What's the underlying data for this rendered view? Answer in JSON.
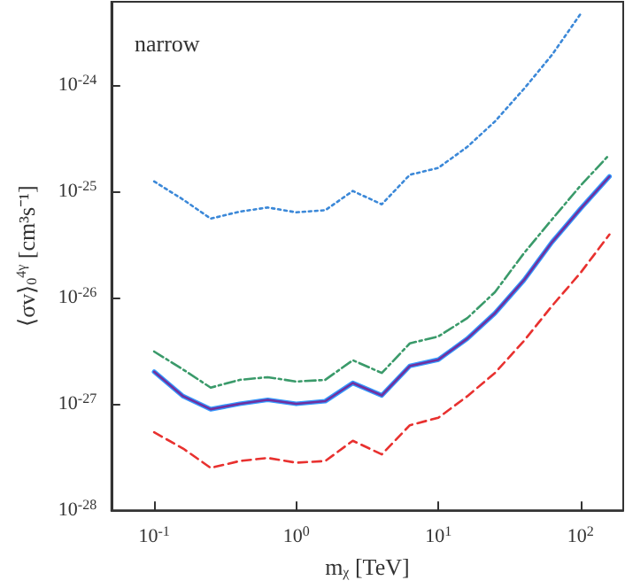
{
  "chart_data": {
    "type": "line",
    "xlabel": "m$_{χ}$ [TeV]",
    "ylabel": "⟨σv⟩$_{0}$$^{4γ}$ [cm³s⁻¹]",
    "annotations": [
      "narrow"
    ],
    "x": [
      0.1,
      0.16,
      0.25,
      0.4,
      0.63,
      1,
      1.6,
      2.5,
      4,
      6.3,
      10,
      16,
      25,
      40,
      63,
      100,
      160
    ],
    "series": [
      {
        "color": "#3b88d8",
        "line_style": "dotted",
        "values": [
          1.23e-25,
          8.3e-26,
          5.5e-26,
          6.4e-26,
          7e-26,
          6.3e-26,
          6.6e-26,
          1e-25,
          7.5e-26,
          1.42e-25,
          1.65e-25,
          2.6e-25,
          4.5e-25,
          9.1e-25,
          1.9e-24,
          4.6e-24,
          null
        ]
      },
      {
        "color": "#3a9a6a",
        "line_style": "dashdot",
        "values": [
          3.1e-27,
          2.1e-27,
          1.42e-27,
          1.68e-27,
          1.78e-27,
          1.62e-27,
          1.68e-27,
          2.57e-27,
          1.95e-27,
          3.7e-27,
          4.3e-27,
          6.4e-27,
          1.12e-26,
          2.6e-26,
          5.4e-26,
          1.12e-25,
          2.2e-25
        ]
      },
      {
        "color": "#3399ff",
        "line_style": "solid",
        "values": [
          2e-27,
          1.18e-27,
          8.9e-28,
          1e-27,
          1.09e-27,
          1e-27,
          1.06e-27,
          1.57e-27,
          1.2e-27,
          2.27e-27,
          2.6e-27,
          4.1e-27,
          7.1e-27,
          1.45e-26,
          3.3e-26,
          6.8e-26,
          1.37e-25
        ]
      },
      {
        "color": "#7030a0",
        "line_style": "solid",
        "values": [
          2e-27,
          1.18e-27,
          8.9e-28,
          1e-27,
          1.09e-27,
          1e-27,
          1.06e-27,
          1.57e-27,
          1.2e-27,
          2.27e-27,
          2.6e-27,
          4.1e-27,
          7.1e-27,
          1.45e-26,
          3.3e-26,
          6.8e-26,
          1.37e-25
        ]
      },
      {
        "color": "#e8312f",
        "line_style": "dashed",
        "values": [
          5.4e-28,
          3.8e-28,
          2.5e-28,
          2.9e-28,
          3.1e-28,
          2.8e-28,
          2.9e-28,
          4.5e-28,
          3.35e-28,
          6.3e-28,
          7.4e-28,
          1.18e-27,
          1.95e-27,
          3.9e-27,
          8.3e-27,
          1.7e-26,
          3.9e-26
        ]
      }
    ],
    "log": "xy",
    "xlim": [
      0.05,
      200
    ],
    "ylim": [
      1e-28,
      6e-24
    ],
    "xticks": [
      {
        "value": 0.1,
        "label": "10$^{-1}$"
      },
      {
        "value": 1,
        "label": "10$^{0}$"
      },
      {
        "value": 10,
        "label": "10$^{1}$"
      },
      {
        "value": 100,
        "label": "10$^{2}$"
      }
    ],
    "yticks": [
      {
        "value": 1e-28,
        "label": "10$^{-28}$"
      },
      {
        "value": 1e-27,
        "label": "10$^{-27}$"
      },
      {
        "value": 1e-26,
        "label": "10$^{-26}$"
      },
      {
        "value": 1e-25,
        "label": "10$^{-25}$"
      },
      {
        "value": 1e-24,
        "label": "10$^{-24}$"
      }
    ],
    "grid": false,
    "marker": "none"
  }
}
